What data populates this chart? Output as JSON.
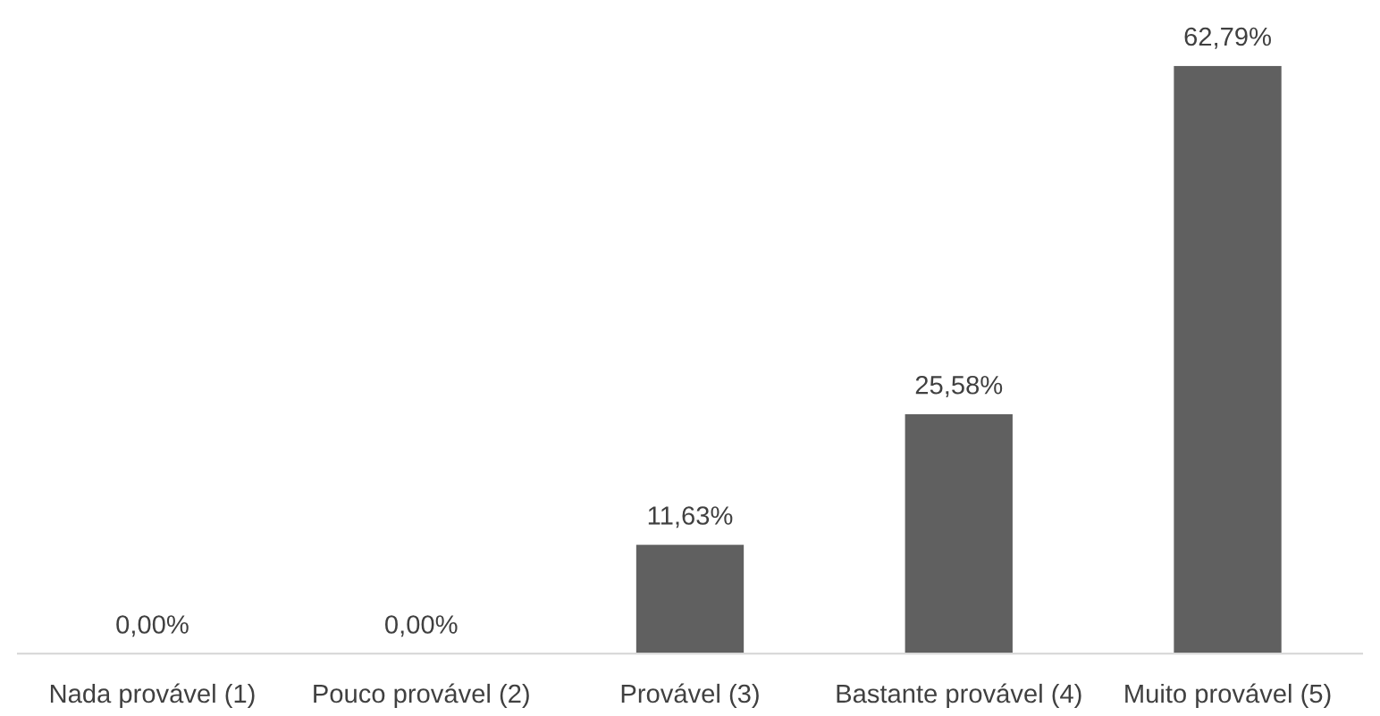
{
  "chart_data": {
    "type": "bar",
    "categories": [
      "Nada provável (1)",
      "Pouco provável (2)",
      "Provável (3)",
      "Bastante provável (4)",
      "Muito provável (5)"
    ],
    "values": [
      0,
      0,
      11.63,
      25.58,
      62.79
    ],
    "value_labels": [
      "0,00%",
      "0,00%",
      "11,63%",
      "25,58%",
      "62,79%"
    ],
    "color": "#606060",
    "grid": false,
    "legend": false
  }
}
